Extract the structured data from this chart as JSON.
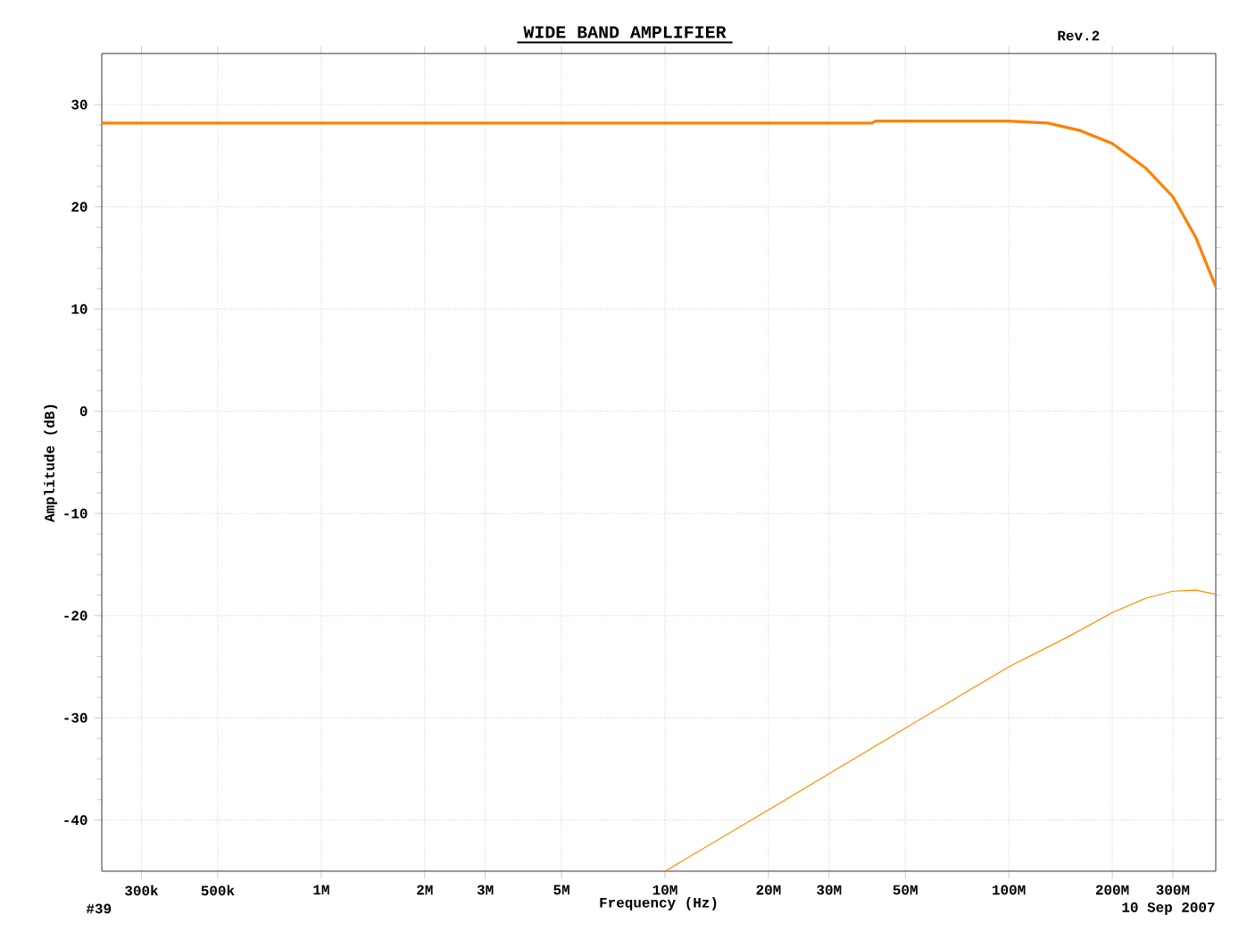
{
  "chart_data": {
    "type": "line",
    "title": "WIDE BAND AMPLIFIER",
    "xlabel": "Frequency (Hz)",
    "ylabel": "Amplitude (dB)",
    "log": "x",
    "grid": true,
    "marker": "none",
    "line_style": "solid",
    "annotations": [
      "Rev.2",
      "#39",
      "10 Sep 2007"
    ],
    "xlim": [
      230000,
      400000000
    ],
    "ylim": [
      -45,
      35
    ],
    "xticks": [
      {
        "value": 300000,
        "label": "300k"
      },
      {
        "value": 500000,
        "label": "500k"
      },
      {
        "value": 1000000,
        "label": "1M"
      },
      {
        "value": 2000000,
        "label": "2M"
      },
      {
        "value": 3000000,
        "label": "3M"
      },
      {
        "value": 5000000,
        "label": "5M"
      },
      {
        "value": 10000000,
        "label": "10M"
      },
      {
        "value": 20000000,
        "label": "20M"
      },
      {
        "value": 30000000,
        "label": "30M"
      },
      {
        "value": 50000000,
        "label": "50M"
      },
      {
        "value": 100000000,
        "label": "100M"
      },
      {
        "value": 200000000,
        "label": "200M"
      },
      {
        "value": 300000000,
        "label": "300M"
      }
    ],
    "yticks": [
      -40,
      -30,
      -20,
      -10,
      0,
      10,
      20,
      30
    ],
    "series": [
      {
        "color": "#ff8000",
        "x": [
          230000,
          1000000,
          10000000,
          40000000,
          41000000,
          100000000,
          130000000,
          160000000,
          200000000,
          250000000,
          300000000,
          350000000,
          400000000
        ],
        "values": [
          28.2,
          28.2,
          28.2,
          28.2,
          28.4,
          28.4,
          28.2,
          27.5,
          26.2,
          23.8,
          21,
          17,
          12.2
        ]
      },
      {
        "color": "#ff8c00",
        "x": [
          10000000,
          20000000,
          50000000,
          100000000,
          150000000,
          200000000,
          250000000,
          300000000,
          350000000,
          400000000
        ],
        "values": [
          -45,
          -39,
          -31,
          -25,
          -22,
          -19.7,
          -18.3,
          -17.6,
          -17.5,
          -17.9
        ]
      }
    ]
  }
}
